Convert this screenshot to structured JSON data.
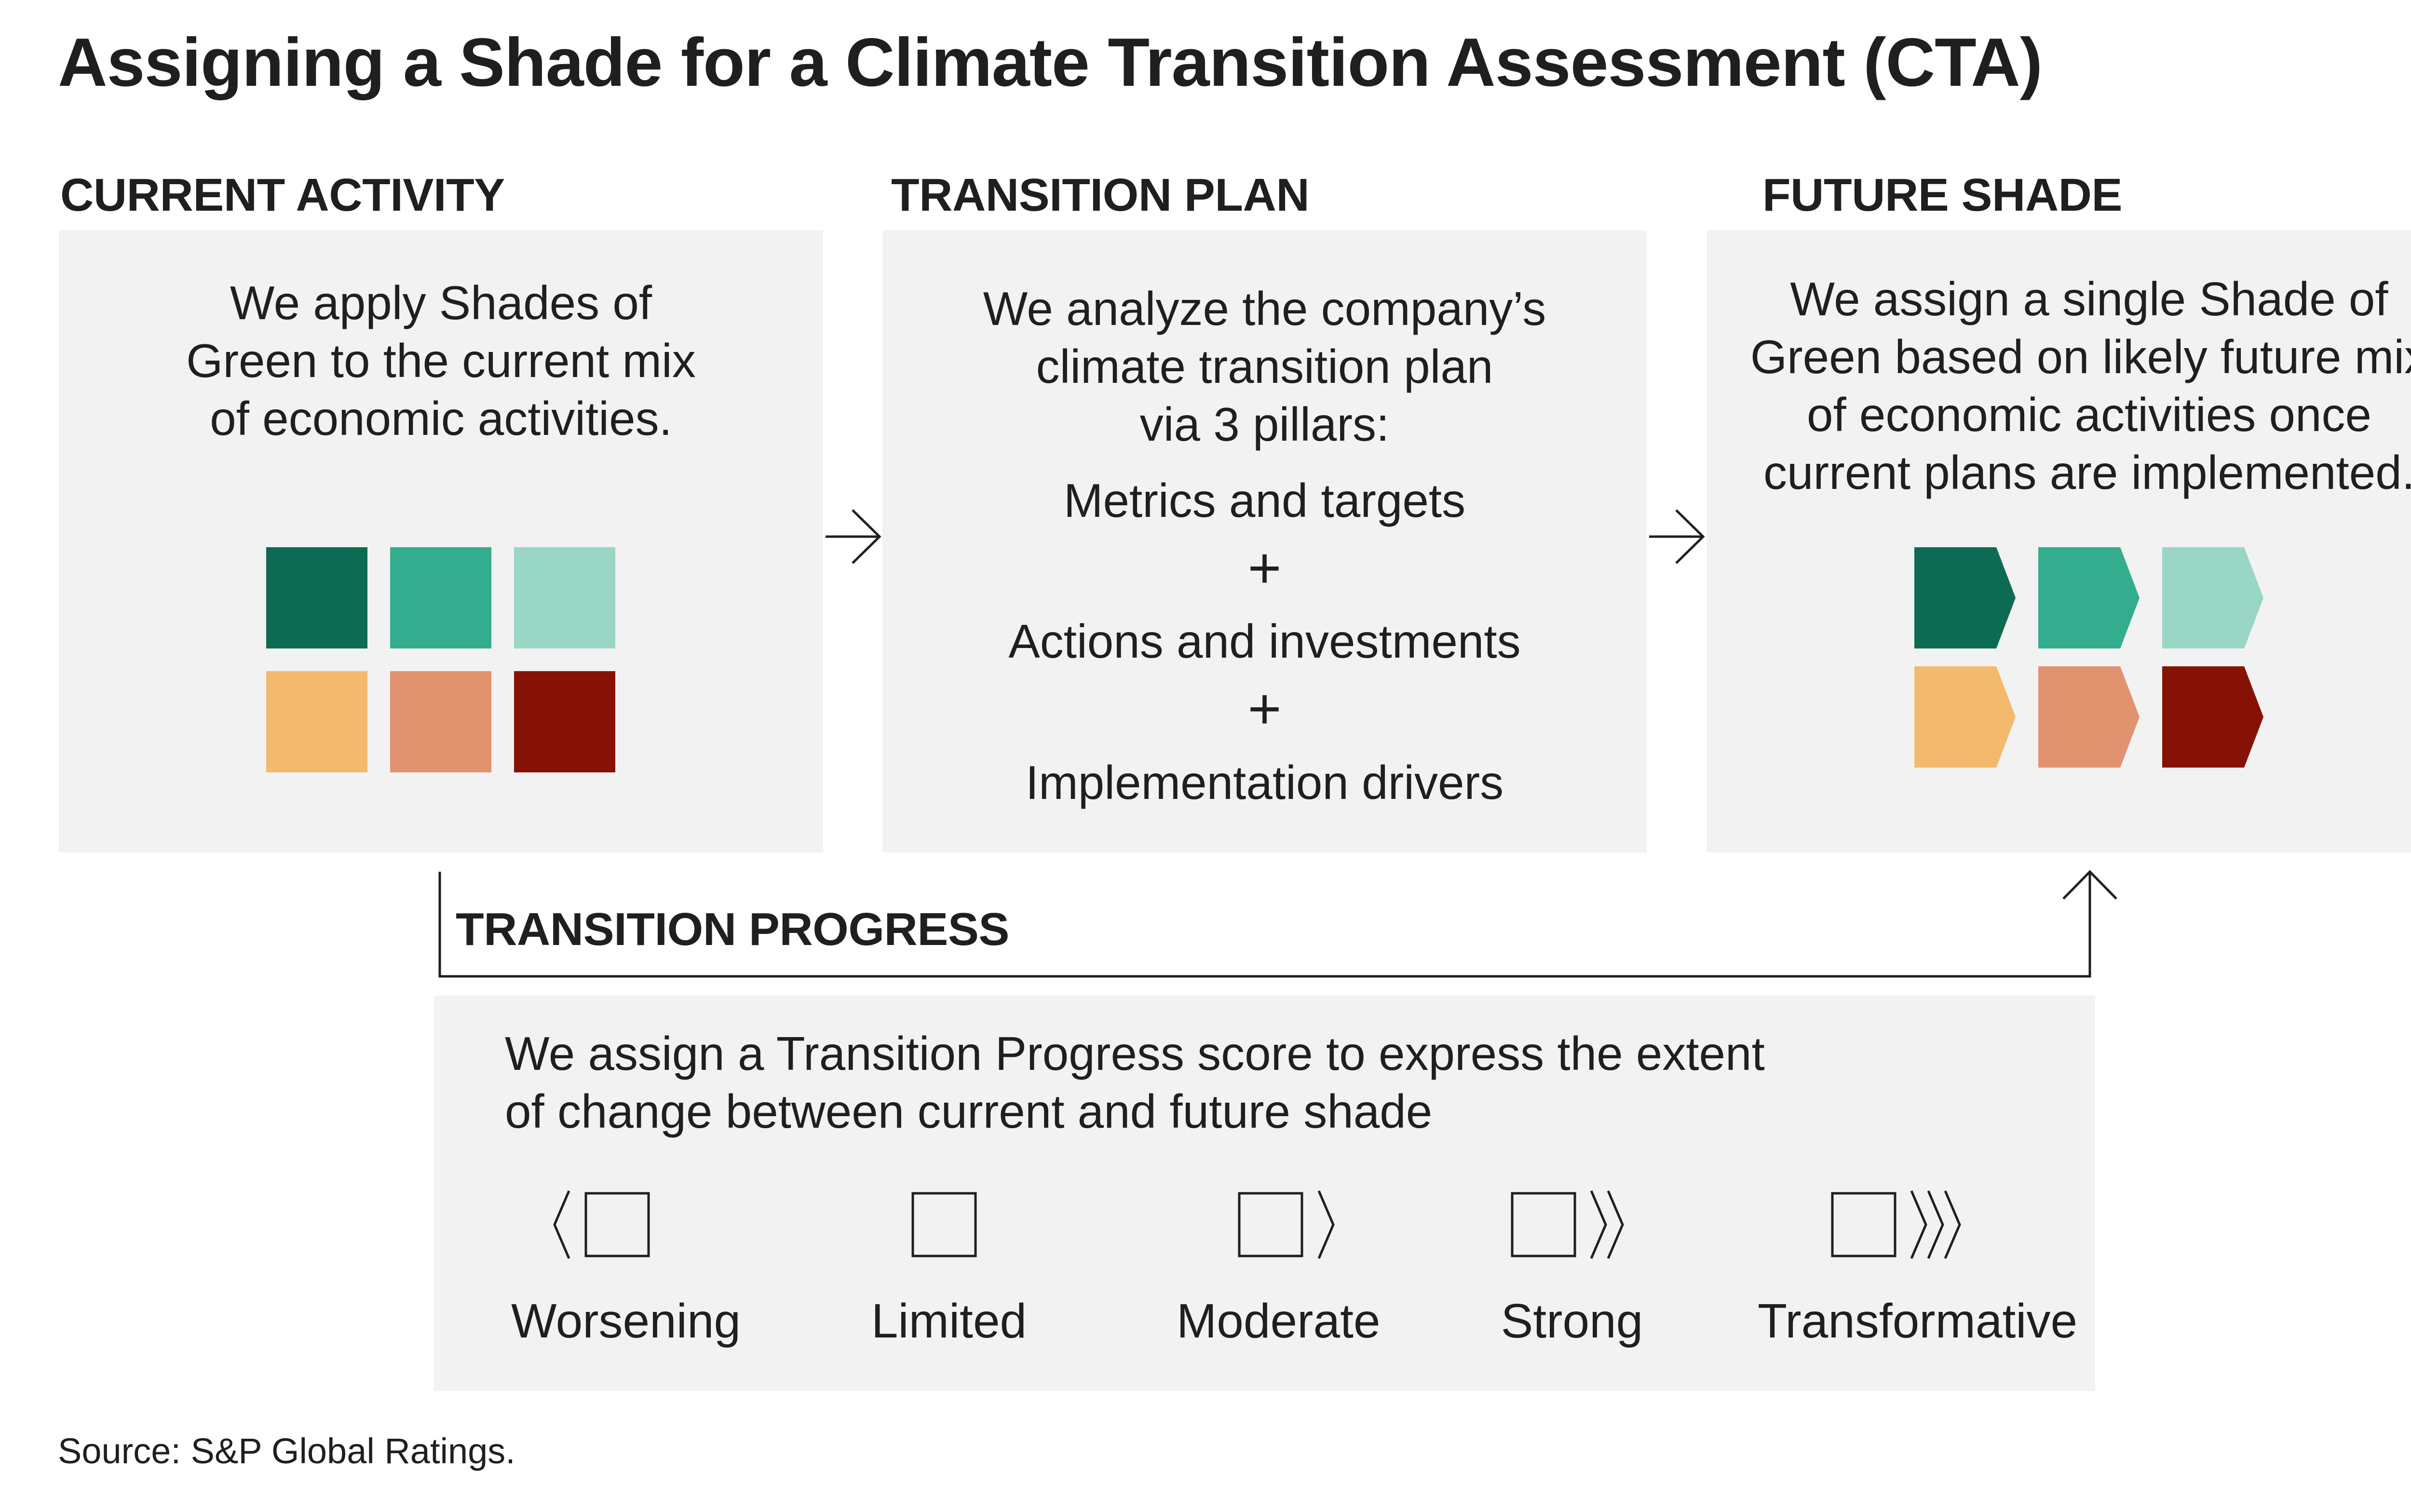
{
  "title": "Assigning a Shade for a Climate Transition Assessment (CTA)",
  "current_activity": {
    "heading": "CURRENT ACTIVITY",
    "text_lines": [
      "We apply Shades of",
      "Green to the current mix",
      "of economic activities."
    ]
  },
  "transition_plan": {
    "heading": "TRANSITION PLAN",
    "text_lines": [
      "We analyze the company’s",
      "climate transition plan",
      "via 3 pillars:"
    ],
    "pillars": [
      "Metrics and targets",
      "Actions and investments",
      "Implementation drivers"
    ],
    "plus_symbol": "+"
  },
  "future_shade": {
    "heading": "FUTURE SHADE",
    "text_lines": [
      "We assign a single Shade of",
      "Green based on likely future mix",
      "of economic activities once",
      "current plans are implemented."
    ]
  },
  "transition_progress": {
    "heading": "TRANSITION PROGRESS",
    "text_lines": [
      "We assign a Transition Progress score to express the extent",
      "of change between current and future shade"
    ],
    "scores": [
      "Worsening",
      "Limited",
      "Moderate",
      "Strong",
      "Transformative"
    ]
  },
  "shade_colors": [
    "#0d6b53",
    "#33ad8e",
    "#99d6c5",
    "#f3b96c",
    "#e19370",
    "#861206"
  ],
  "source": "Source: S&P Global Ratings."
}
